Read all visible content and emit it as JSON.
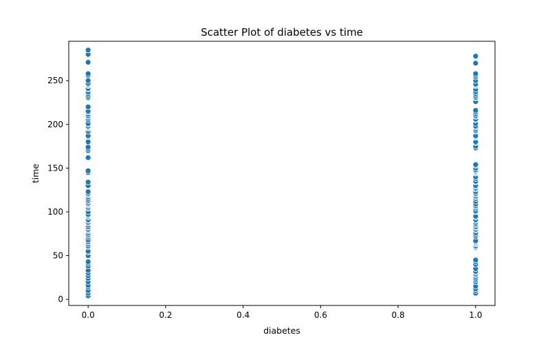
{
  "chart_data": {
    "type": "scatter",
    "title": "Scatter Plot of diabetes vs time",
    "xlabel": "diabetes",
    "ylabel": "time",
    "xlim": [
      -0.05,
      1.05
    ],
    "ylim": [
      -7,
      295
    ],
    "x_ticks": [
      0.0,
      0.2,
      0.4,
      0.6,
      0.8,
      1.0
    ],
    "x_tick_labels": [
      "0.0",
      "0.2",
      "0.4",
      "0.6",
      "0.8",
      "1.0"
    ],
    "y_ticks": [
      0,
      50,
      100,
      150,
      200,
      250
    ],
    "y_tick_labels": [
      "0",
      "50",
      "100",
      "150",
      "200",
      "250"
    ],
    "grid": false,
    "marker_color": "#1f77b4",
    "marker_edge_color": "#ffffff",
    "series": [
      {
        "x": 0,
        "y": [
          4,
          7,
          10,
          14,
          16,
          20,
          24,
          27,
          30,
          33,
          38,
          41,
          43,
          50,
          54,
          55,
          60,
          61,
          63,
          65,
          66,
          68,
          71,
          73,
          74,
          76,
          78,
          79,
          80,
          82,
          83,
          85,
          87,
          88,
          90,
          91,
          94,
          95,
          96,
          97,
          100,
          104,
          105,
          107,
          108,
          109,
          110,
          112,
          113,
          115,
          117,
          119,
          120,
          121,
          123,
          130,
          134,
          145,
          147,
          162,
          170,
          172,
          174,
          180,
          186,
          187,
          192,
          195,
          196,
          197,
          198,
          200,
          201,
          205,
          207,
          209,
          210,
          212,
          214,
          215,
          220,
          230,
          231,
          233,
          235,
          237,
          240,
          241,
          244,
          245,
          246,
          247,
          250,
          256,
          258,
          271,
          280,
          285
        ]
      },
      {
        "x": 1,
        "y": [
          7,
          10,
          12,
          15,
          20,
          22,
          24,
          26,
          28,
          29,
          31,
          32,
          35,
          40,
          43,
          45,
          59,
          60,
          61,
          63,
          64,
          65,
          66,
          67,
          72,
          74,
          76,
          79,
          80,
          82,
          83,
          85,
          86,
          88,
          90,
          91,
          94,
          95,
          100,
          101,
          104,
          106,
          107,
          109,
          112,
          115,
          117,
          118,
          120,
          121,
          123,
          126,
          127,
          129,
          130,
          134,
          135,
          138,
          140,
          144,
          145,
          146,
          147,
          148,
          150,
          153,
          154,
          173,
          175,
          179,
          180,
          185,
          186,
          187,
          192,
          193,
          195,
          197,
          198,
          201,
          205,
          206,
          209,
          210,
          212,
          214,
          216,
          226,
          230,
          231,
          233,
          235,
          237,
          240,
          244,
          245,
          246,
          250,
          254,
          256,
          258,
          270,
          278
        ]
      }
    ]
  }
}
